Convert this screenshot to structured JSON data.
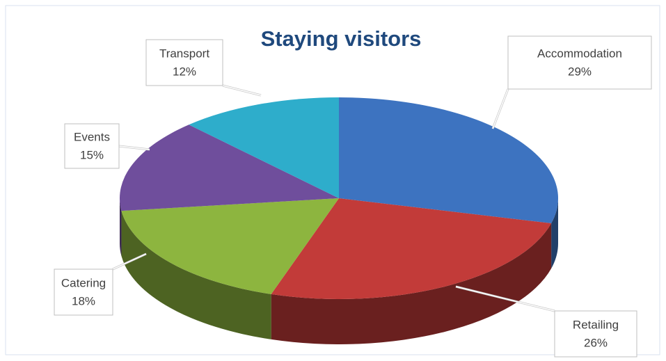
{
  "chart_data": {
    "type": "pie",
    "title": "Staying visitors",
    "categories": [
      "Accommodation",
      "Retailing",
      "Catering",
      "Events",
      "Transport"
    ],
    "values": [
      29,
      26,
      18,
      15,
      12
    ],
    "value_labels": [
      "29%",
      "26%",
      "18%",
      "15%",
      "12%"
    ],
    "colors": [
      "#3d73c0",
      "#c23b39",
      "#8db53f",
      "#6f4e9c",
      "#2eadcb"
    ]
  }
}
